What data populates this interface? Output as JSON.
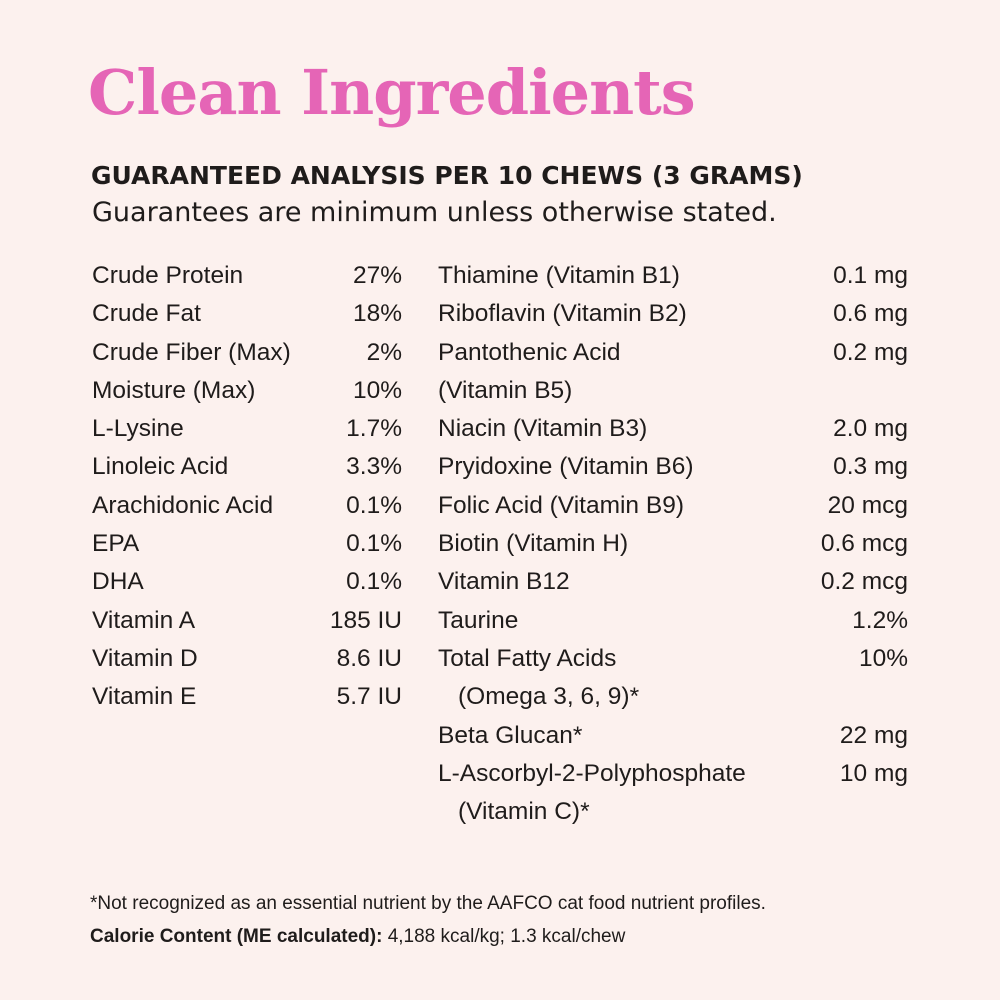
{
  "title": "Clean Ingredients",
  "heading": "GUARANTEED ANALYSIS PER 10 CHEWS (3 GRAMS)",
  "subheading": "Guarantees are minimum unless otherwise stated.",
  "left_column": [
    {
      "name": "Crude Protein",
      "value": "27%"
    },
    {
      "name": "Crude Fat",
      "value": "18%"
    },
    {
      "name": "Crude Fiber (Max)",
      "value": "2%"
    },
    {
      "name": "Moisture (Max)",
      "value": "10%"
    },
    {
      "name": "L-Lysine",
      "value": "1.7%"
    },
    {
      "name": "Linoleic Acid",
      "value": "3.3%"
    },
    {
      "name": "Arachidonic Acid",
      "value": "0.1%"
    },
    {
      "name": "EPA",
      "value": "0.1%"
    },
    {
      "name": "DHA",
      "value": "0.1%"
    },
    {
      "name": "Vitamin A",
      "value": "185 IU"
    },
    {
      "name": "Vitamin D",
      "value": "8.6 IU"
    },
    {
      "name": "Vitamin E",
      "value": "5.7 IU"
    }
  ],
  "right_column": [
    {
      "name": "Thiamine (Vitamin B1)",
      "value": "0.1 mg"
    },
    {
      "name": "Riboflavin (Vitamin B2)",
      "value": "0.6 mg"
    },
    {
      "name": "Pantothenic Acid",
      "name2": "(Vitamin B5)",
      "value": "0.2 mg"
    },
    {
      "name": "Niacin (Vitamin B3)",
      "value": "2.0 mg"
    },
    {
      "name": "Pryidoxine (Vitamin B6)",
      "value": "0.3 mg"
    },
    {
      "name": "Folic Acid (Vitamin B9)",
      "value": "20 mcg"
    },
    {
      "name": "Biotin (Vitamin H)",
      "value": "0.6 mcg"
    },
    {
      "name": "Vitamin B12",
      "value": "0.2 mcg"
    },
    {
      "name": "Taurine",
      "value": "1.2%"
    },
    {
      "name": "Total Fatty Acids",
      "name2": "(Omega 3, 6, 9)*",
      "value": "10%"
    },
    {
      "name": "Beta Glucan*",
      "value": "22 mg"
    },
    {
      "name": "L-Ascorbyl-2-Polyphosphate",
      "name2": "(Vitamin C)*",
      "value": "10 mg"
    }
  ],
  "footnote": "*Not recognized as an essential nutrient by the AAFCO cat food nutrient profiles.",
  "calorie": {
    "label": "Calorie Content (ME calculated):",
    "value": "4,188 kcal/kg; 1.3 kcal/chew"
  },
  "colors": {
    "title": "#e565b6",
    "background": "#fcf1ee",
    "text": "#1f1c1b"
  }
}
